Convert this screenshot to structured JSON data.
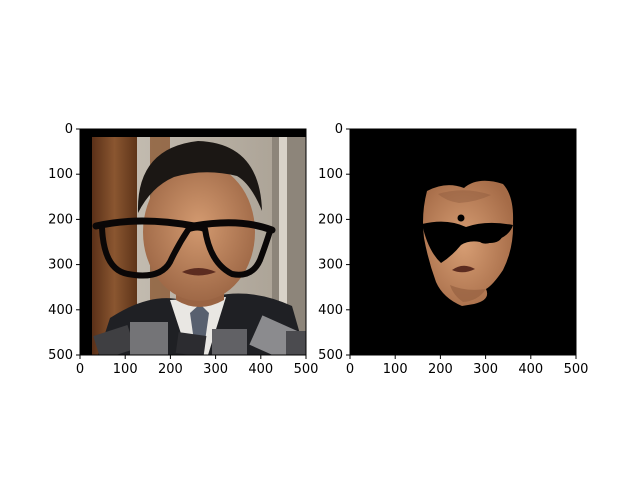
{
  "figure": {
    "background": "#ffffff",
    "panels": [
      {
        "id": "left",
        "content": "photo of a man in a suit speaking to microphones, with black glasses overlaid",
        "x_ticks": [
          "0",
          "100",
          "200",
          "300",
          "400",
          "500"
        ],
        "y_ticks": [
          "0",
          "100",
          "200",
          "300",
          "400",
          "500"
        ],
        "x_range": [
          0,
          500
        ],
        "y_range": [
          0,
          500
        ],
        "colors": {
          "door_wood": "#6b3f22",
          "wall": "#bdb7ad",
          "hair": "#1b1714",
          "skin": "#b8805b",
          "suit": "#1f2024",
          "shirt": "#e9e7e3",
          "tie": "#58606f",
          "glasses": "#0a0707",
          "microphones": "#6f6f72"
        }
      },
      {
        "id": "right",
        "content": "segmented face region on black background with glasses area removed",
        "x_ticks": [
          "0",
          "100",
          "200",
          "300",
          "400",
          "500"
        ],
        "y_ticks": [
          "0",
          "100",
          "200",
          "300",
          "400",
          "500"
        ],
        "x_range": [
          0,
          500
        ],
        "y_range": [
          0,
          500
        ],
        "colors": {
          "background": "#000000",
          "skin": "#c28a62",
          "skin_shadow": "#8e5a3f"
        }
      }
    ]
  }
}
